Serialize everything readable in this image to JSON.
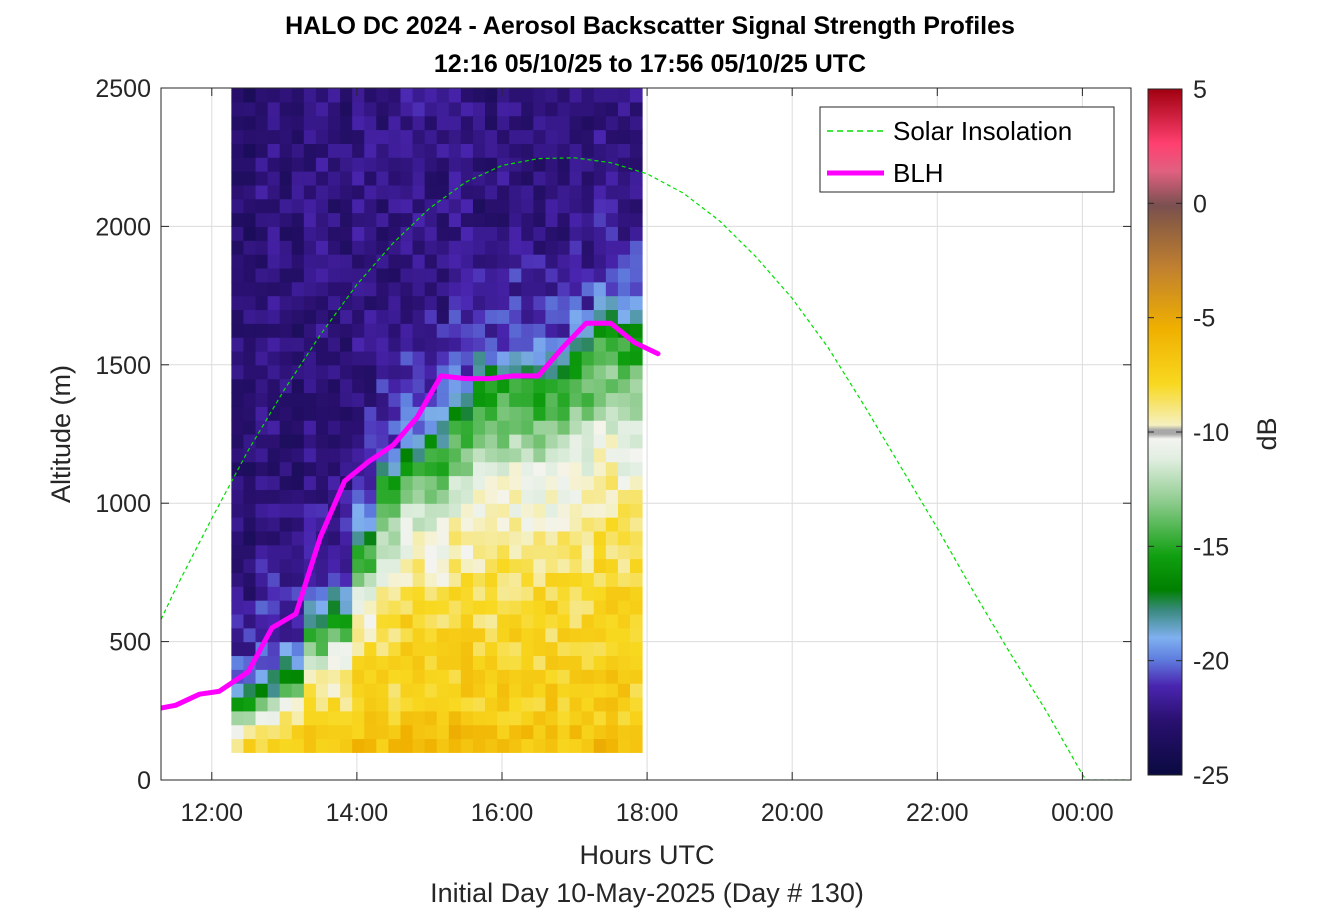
{
  "chart_data": {
    "type": "heatmap",
    "title": "HALO DC 2024 - Aerosol Backscatter Signal Strength Profiles",
    "subtitle": "12:16 05/10/25 to 17:56 05/10/25  UTC",
    "xlabel": "Hours UTC",
    "xlabel2": "Initial Day 10-May-2025 (Day # 130)",
    "ylabel": "Altitude (m)",
    "colorbar_label": "dB",
    "xlim": [
      11.3,
      24.67
    ],
    "ylim": [
      0,
      2500
    ],
    "clim": [
      -25,
      5
    ],
    "grid": true,
    "legend_position": "top-right",
    "x_ticks": [
      {
        "value": 12,
        "label": "12:00"
      },
      {
        "value": 14,
        "label": "14:00"
      },
      {
        "value": 16,
        "label": "16:00"
      },
      {
        "value": 18,
        "label": "18:00"
      },
      {
        "value": 20,
        "label": "20:00"
      },
      {
        "value": 22,
        "label": "22:00"
      },
      {
        "value": 24,
        "label": "00:00"
      }
    ],
    "y_ticks": [
      {
        "value": 0,
        "label": "0"
      },
      {
        "value": 500,
        "label": "500"
      },
      {
        "value": 1000,
        "label": "1000"
      },
      {
        "value": 1500,
        "label": "1500"
      },
      {
        "value": 2000,
        "label": "2000"
      },
      {
        "value": 2500,
        "label": "2500"
      }
    ],
    "colorbar_ticks": [
      {
        "value": 5,
        "label": "5"
      },
      {
        "value": 0,
        "label": "0"
      },
      {
        "value": -5,
        "label": "-5"
      },
      {
        "value": -10,
        "label": "-10"
      },
      {
        "value": -15,
        "label": "-15"
      },
      {
        "value": -20,
        "label": "-20"
      },
      {
        "value": -25,
        "label": "-25"
      }
    ],
    "heatmap": {
      "x_start": 12.27,
      "x_end": 17.93,
      "bin_hours": 0.333,
      "alt_bottom": 100,
      "alt_top": 2500,
      "alt_bin": 50,
      "profiles": [
        {
          "blh": 290,
          "offset": -0.3
        },
        {
          "blh": 320,
          "offset": 0.2
        },
        {
          "blh": 380,
          "offset": -0.1
        },
        {
          "blh": 540,
          "offset": 0.3
        },
        {
          "blh": 600,
          "offset": 0.0
        },
        {
          "blh": 850,
          "offset": 0.4
        },
        {
          "blh": 1080,
          "offset": 0.1
        },
        {
          "blh": 1150,
          "offset": 0.6
        },
        {
          "blh": 1210,
          "offset": 0.2
        },
        {
          "blh": 1310,
          "offset": 0.5
        },
        {
          "blh": 1450,
          "offset": 0.0
        },
        {
          "blh": 1440,
          "offset": 0.3
        },
        {
          "blh": 1450,
          "offset": 0.1
        },
        {
          "blh": 1460,
          "offset": 0.2
        },
        {
          "blh": 1560,
          "offset": 0.0
        },
        {
          "blh": 1640,
          "offset": 0.4
        },
        {
          "blh": 1620,
          "offset": 0.2
        }
      ]
    },
    "series": [
      {
        "name": "Solar Insolation",
        "type": "line",
        "style": "dashed",
        "color": "#00e000",
        "x": [
          11.3,
          11.5,
          12.0,
          12.5,
          13.0,
          13.5,
          14.0,
          14.5,
          15.0,
          15.5,
          16.0,
          16.5,
          17.0,
          17.5,
          18.0,
          18.5,
          19.0,
          19.5,
          20.0,
          20.5,
          21.0,
          21.5,
          22.0,
          22.5,
          23.0,
          23.5,
          24.0,
          24.05,
          24.6
        ],
        "y": [
          580,
          690,
          945,
          1190,
          1410,
          1610,
          1790,
          1940,
          2065,
          2160,
          2220,
          2245,
          2248,
          2230,
          2190,
          2120,
          2020,
          1890,
          1740,
          1560,
          1350,
          1130,
          910,
          680,
          460,
          250,
          20,
          0,
          0
        ]
      },
      {
        "name": "BLH",
        "type": "line",
        "style": "solid",
        "color": "#ff00ff",
        "x": [
          11.3,
          11.5,
          11.83,
          12.1,
          12.5,
          12.83,
          13.16,
          13.5,
          13.83,
          14.16,
          14.5,
          14.83,
          15.16,
          15.5,
          15.83,
          16.16,
          16.5,
          16.83,
          17.16,
          17.5,
          17.83,
          18.15
        ],
        "y": [
          260,
          270,
          310,
          320,
          390,
          550,
          600,
          880,
          1080,
          1150,
          1210,
          1310,
          1460,
          1450,
          1450,
          1460,
          1460,
          1560,
          1650,
          1650,
          1580,
          1540
        ]
      }
    ]
  }
}
